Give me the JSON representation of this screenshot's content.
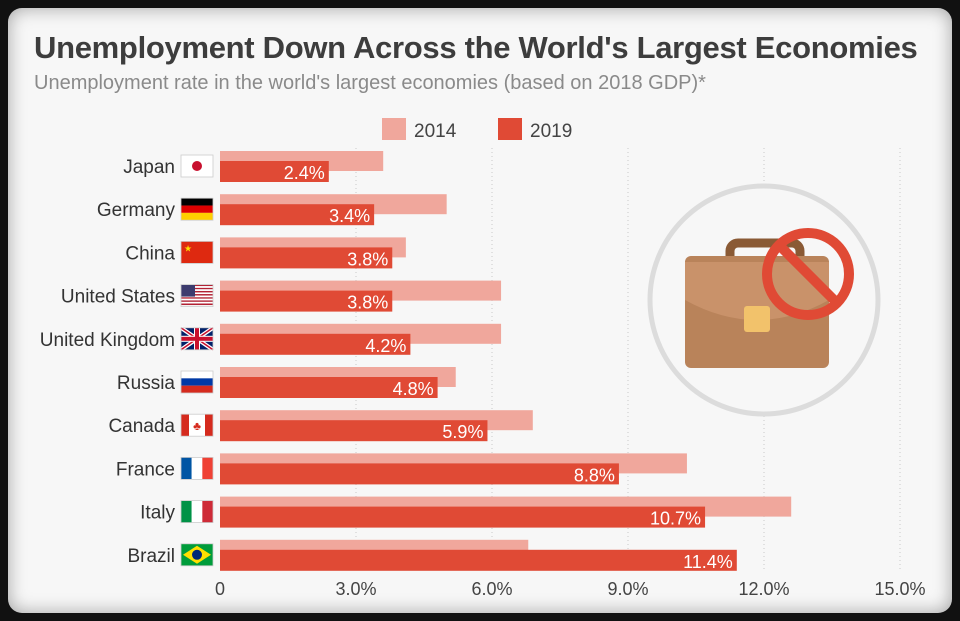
{
  "chart_data": {
    "type": "bar",
    "orientation": "horizontal",
    "title": "Unemployment Down Across the World's Largest Economies",
    "subtitle": "Unemployment rate in the world's largest economies (based on 2018 GDP)*",
    "categories": [
      "Japan",
      "Germany",
      "China",
      "United States",
      "United Kingdom",
      "Russia",
      "Canada",
      "France",
      "Italy",
      "Brazil"
    ],
    "series": [
      {
        "name": "2014",
        "color": "#f0a79c",
        "values": [
          3.6,
          5.0,
          4.1,
          6.2,
          6.2,
          5.2,
          6.9,
          10.3,
          12.6,
          6.8
        ]
      },
      {
        "name": "2019",
        "color": "#e04a35",
        "values": [
          2.4,
          3.4,
          3.8,
          3.8,
          4.2,
          4.8,
          5.9,
          8.8,
          10.7,
          11.4
        ],
        "data_labels": [
          "2.4%",
          "3.4%",
          "3.8%",
          "3.8%",
          "4.2%",
          "4.8%",
          "5.9%",
          "8.8%",
          "10.7%",
          "11.4%"
        ]
      }
    ],
    "xlim": [
      0,
      15
    ],
    "x_ticks": [
      0,
      3,
      6,
      9,
      12,
      15
    ],
    "x_tick_labels": [
      "0",
      "3.0%",
      "6.0%",
      "9.0%",
      "12.0%",
      "15.0%"
    ],
    "grid": "vertical dotted",
    "legend": "top",
    "flags": [
      "japan-flag",
      "germany-flag",
      "china-flag",
      "usa-flag",
      "uk-flag",
      "russia-flag",
      "canada-flag",
      "france-flag",
      "italy-flag",
      "brazil-flag"
    ],
    "illustration": "briefcase-with-prohibited-sign-icon"
  }
}
